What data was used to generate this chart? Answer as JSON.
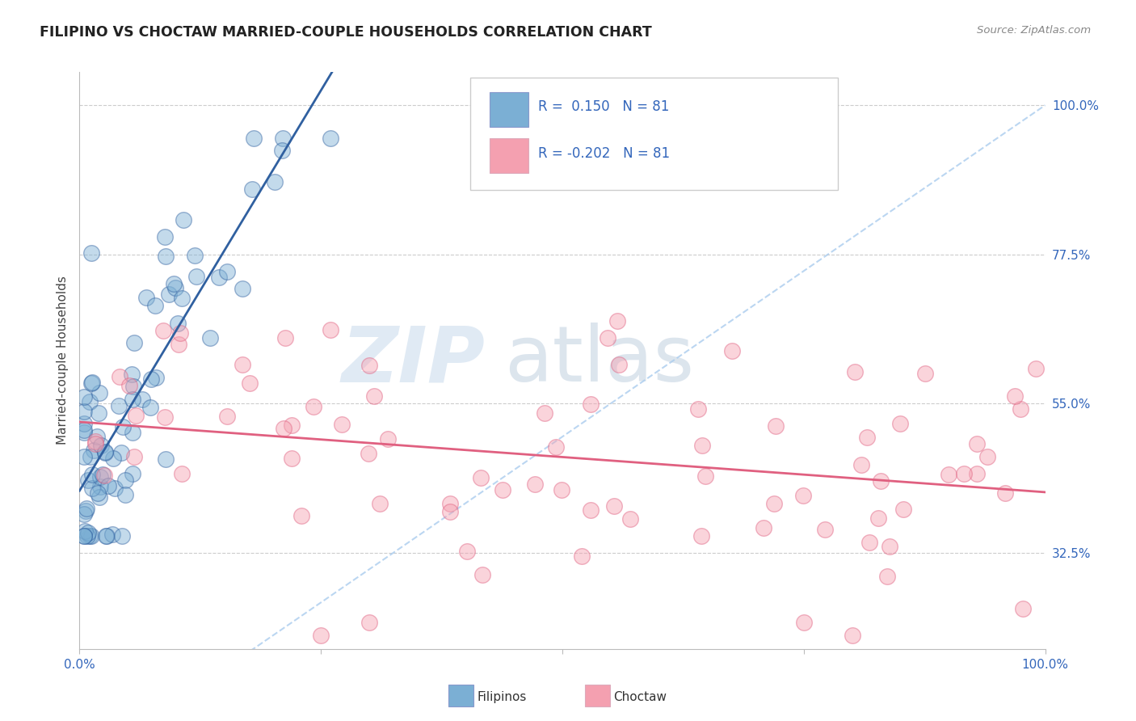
{
  "title": "FILIPINO VS CHOCTAW MARRIED-COUPLE HOUSEHOLDS CORRELATION CHART",
  "source": "Source: ZipAtlas.com",
  "ylabel": "Married-couple Households",
  "color_filipino": "#7BAFD4",
  "color_choctaw": "#F4A0B0",
  "color_trend_filipino": "#3060A0",
  "color_trend_choctaw": "#E06080",
  "color_diag": "#AACCEE",
  "background": "#FFFFFF",
  "ytick_vals": [
    0.325,
    0.55,
    0.775,
    1.0
  ],
  "ytick_labels": [
    "32.5%",
    "55.0%",
    "77.5%",
    "100.0%"
  ],
  "xlim": [
    0.0,
    1.0
  ],
  "ylim": [
    0.18,
    1.05
  ],
  "fil_seed": 42,
  "cho_seed": 99,
  "watermark_zip": "ZIP",
  "watermark_atlas": "atlas"
}
